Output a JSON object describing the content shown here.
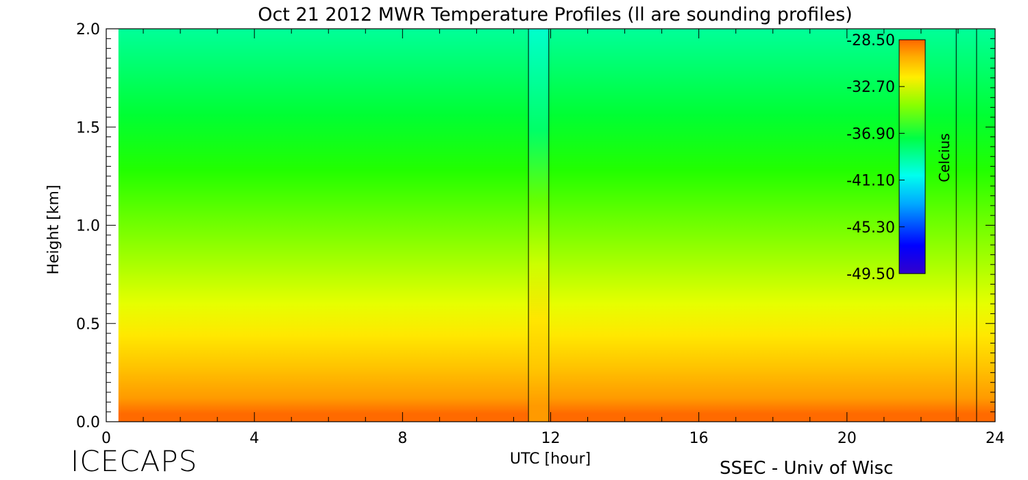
{
  "footer": {
    "project": "ICECAPS",
    "institution": "SSEC - Univ of Wisc"
  },
  "chart_data": {
    "type": "heatmap",
    "title": "Oct 21 2012 MWR Temperature Profiles (ll are sounding profiles)",
    "xlabel": "UTC [hour]",
    "ylabel": "Height [km]",
    "xlim": [
      0,
      24
    ],
    "ylim": [
      0,
      2.0
    ],
    "x_ticks": [
      0,
      4,
      8,
      12,
      16,
      20,
      24
    ],
    "y_ticks": [
      "0.0",
      "0.5",
      "1.0",
      "1.5",
      "2.0"
    ],
    "data_start_hour": 0.33,
    "colorbar": {
      "label": "Celcius",
      "placement": "top-right",
      "ticks": [
        "-28.50",
        "-32.70",
        "-36.90",
        "-41.10",
        "-45.30",
        "-49.50"
      ],
      "range": [
        -49.5,
        -28.5
      ]
    },
    "sounding_times": [
      11.4,
      11.95,
      22.95,
      23.5
    ],
    "sounding_gap": [
      11.4,
      11.95
    ],
    "sounding_gap_colors": [
      "#ff9a00",
      "#ffc800",
      "#ffe600",
      "#ccff00",
      "#66ff00",
      "#00ff66",
      "#00ffcc"
    ],
    "field_colors": [
      "#ff6a00",
      "#ff9a00",
      "#ffc400",
      "#ffe800",
      "#e6ff00",
      "#aaff00",
      "#66ff00",
      "#22ff00",
      "#00ff33",
      "#00ff99"
    ]
  }
}
